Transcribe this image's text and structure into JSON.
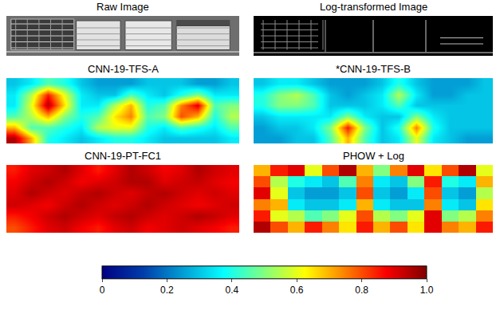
{
  "chart_data": [
    {
      "type": "image",
      "title": "Raw Image",
      "color": "#6e6e6e"
    },
    {
      "type": "image",
      "title": "Log-transformed Image",
      "color": "#000000"
    },
    {
      "type": "heatmap",
      "title": "CNN-19-TFS-A",
      "tick_labels": false,
      "cells": [
        [
          0.3,
          0.35,
          0.45,
          0.4,
          0.3,
          0.25,
          0.25,
          0.25,
          0.3,
          0.3,
          0.3,
          0.25,
          0.25,
          0.3
        ],
        [
          0.35,
          0.55,
          0.85,
          0.6,
          0.35,
          0.3,
          0.3,
          0.45,
          0.35,
          0.3,
          0.4,
          0.5,
          0.35,
          0.35
        ],
        [
          0.35,
          0.6,
          0.95,
          0.65,
          0.35,
          0.35,
          0.55,
          0.7,
          0.4,
          0.45,
          0.75,
          0.9,
          0.45,
          0.5
        ],
        [
          0.45,
          0.55,
          0.7,
          0.5,
          0.4,
          0.45,
          0.65,
          0.75,
          0.45,
          0.5,
          0.8,
          0.7,
          0.4,
          0.55
        ],
        [
          0.7,
          0.45,
          0.45,
          0.4,
          0.35,
          0.55,
          0.6,
          0.6,
          0.4,
          0.35,
          0.45,
          0.4,
          0.35,
          0.45
        ],
        [
          0.95,
          0.7,
          0.4,
          0.35,
          0.3,
          0.35,
          0.4,
          0.4,
          0.35,
          0.3,
          0.3,
          0.3,
          0.3,
          0.35
        ]
      ]
    },
    {
      "type": "heatmap",
      "title": "*CNN-19-TFS-B",
      "tick_labels": false,
      "cells": [
        [
          0.3,
          0.35,
          0.35,
          0.3,
          0.25,
          0.25,
          0.25,
          0.3,
          0.4,
          0.3,
          0.25,
          0.25,
          0.25,
          0.3
        ],
        [
          0.4,
          0.5,
          0.55,
          0.45,
          0.3,
          0.25,
          0.3,
          0.35,
          0.55,
          0.35,
          0.25,
          0.25,
          0.3,
          0.3
        ],
        [
          0.4,
          0.5,
          0.5,
          0.45,
          0.3,
          0.3,
          0.3,
          0.35,
          0.45,
          0.3,
          0.3,
          0.3,
          0.3,
          0.3
        ],
        [
          0.3,
          0.35,
          0.35,
          0.35,
          0.35,
          0.5,
          0.35,
          0.3,
          0.3,
          0.5,
          0.35,
          0.3,
          0.3,
          0.3
        ],
        [
          0.25,
          0.3,
          0.3,
          0.35,
          0.5,
          0.85,
          0.5,
          0.3,
          0.4,
          0.75,
          0.4,
          0.3,
          0.3,
          0.3
        ],
        [
          0.25,
          0.25,
          0.3,
          0.3,
          0.45,
          0.7,
          0.45,
          0.3,
          0.35,
          0.6,
          0.35,
          0.3,
          0.25,
          0.25
        ]
      ]
    },
    {
      "type": "heatmap",
      "title": "CNN-19-PT-FC1",
      "tick_labels": false,
      "cells": [
        [
          0.85,
          0.9,
          0.92,
          0.95,
          0.9,
          0.85,
          0.9,
          0.95,
          0.92,
          0.88,
          0.9,
          0.95,
          0.92,
          0.9
        ],
        [
          0.88,
          0.92,
          0.95,
          0.92,
          0.88,
          0.9,
          0.92,
          0.95,
          0.95,
          0.9,
          0.92,
          0.93,
          0.9,
          0.88
        ],
        [
          0.9,
          0.95,
          0.92,
          0.9,
          0.93,
          0.95,
          0.92,
          0.9,
          0.93,
          0.95,
          0.92,
          0.9,
          0.92,
          0.9
        ],
        [
          0.92,
          0.9,
          0.88,
          0.92,
          0.95,
          0.92,
          0.9,
          0.92,
          0.95,
          0.92,
          0.9,
          0.88,
          0.9,
          0.92
        ],
        [
          0.85,
          0.88,
          0.92,
          0.95,
          0.92,
          0.9,
          0.93,
          0.95,
          0.92,
          0.9,
          0.92,
          0.95,
          0.93,
          0.9
        ],
        [
          0.8,
          0.85,
          0.9,
          0.92,
          0.88,
          0.85,
          0.9,
          0.92,
          0.88,
          0.9,
          0.92,
          0.9,
          0.88,
          0.85
        ]
      ]
    },
    {
      "type": "heatmap",
      "title": "PHOW + Log",
      "tick_labels": false,
      "cells": [
        [
          0.7,
          0.85,
          0.9,
          0.6,
          0.8,
          0.95,
          0.7,
          0.5,
          0.75,
          0.9,
          0.65,
          0.8,
          0.95,
          0.6
        ],
        [
          0.8,
          0.55,
          0.4,
          0.35,
          0.3,
          0.45,
          0.75,
          0.35,
          0.3,
          0.5,
          0.85,
          0.4,
          0.35,
          0.7
        ],
        [
          0.9,
          0.6,
          0.3,
          0.25,
          0.25,
          0.3,
          0.8,
          0.3,
          0.25,
          0.35,
          0.8,
          0.3,
          0.25,
          0.55
        ],
        [
          0.75,
          0.7,
          0.35,
          0.3,
          0.3,
          0.35,
          0.7,
          0.35,
          0.3,
          0.3,
          0.75,
          0.35,
          0.3,
          0.65
        ],
        [
          0.85,
          0.6,
          0.55,
          0.45,
          0.5,
          0.6,
          0.8,
          0.55,
          0.5,
          0.6,
          0.9,
          0.5,
          0.55,
          0.75
        ],
        [
          0.95,
          0.8,
          0.7,
          0.85,
          0.75,
          0.65,
          0.85,
          0.7,
          0.8,
          0.65,
          0.9,
          0.75,
          0.7,
          0.85
        ]
      ]
    }
  ],
  "colorbar": {
    "range": [
      0,
      1
    ],
    "color": "Jet",
    "ticks": [
      0,
      0.2,
      0.4,
      0.6,
      0.8,
      {
        "value": 1,
        "label": "1.0"
      }
    ]
  }
}
